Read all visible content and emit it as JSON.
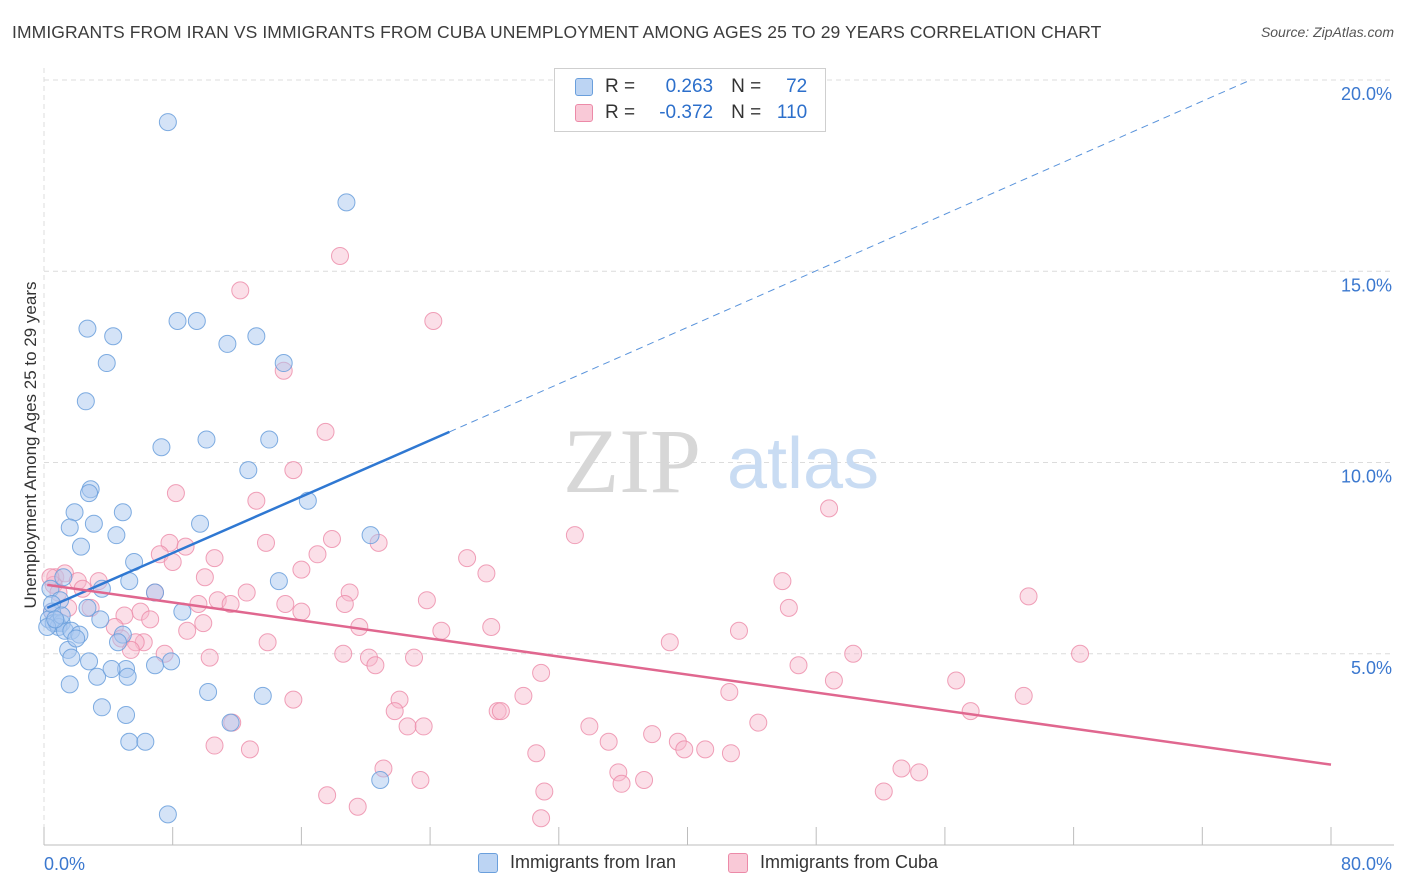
{
  "header": {
    "title": "IMMIGRANTS FROM IRAN VS IMMIGRANTS FROM CUBA UNEMPLOYMENT AMONG AGES 25 TO 29 YEARS CORRELATION CHART",
    "source": "Source: ZipAtlas.com"
  },
  "watermark": {
    "zip": "ZIP",
    "atlas": "atlas"
  },
  "legend": {
    "r_label": "R =",
    "n_label": "N =",
    "iran": {
      "r": "0.263",
      "n": "72"
    },
    "cuba": {
      "r": "-0.372",
      "n": "110"
    }
  },
  "colors": {
    "iran_fill": "#a9c8f0",
    "iran_stroke": "#6a9fdc",
    "iran_line": "#2f78d2",
    "cuba_fill": "#f6b8cb",
    "cuba_stroke": "#ec8aa8",
    "cuba_line": "#e0678f",
    "tick_label": "#3b78cf",
    "grid": "#dcdcdc"
  },
  "chart_data": {
    "type": "scatter",
    "title": "IMMIGRANTS FROM IRAN VS IMMIGRANTS FROM CUBA UNEMPLOYMENT AMONG AGES 25 TO 29 YEARS CORRELATION CHART",
    "xlabel": "",
    "ylabel": "Unemployment Among Ages 25 to 29 years",
    "xlim": [
      0,
      80
    ],
    "ylim": [
      0,
      20
    ],
    "x_tick_labels": [
      "0.0%",
      "80.0%"
    ],
    "y_ticks": [
      5,
      10,
      15,
      20
    ],
    "y_tick_labels": [
      "5.0%",
      "10.0%",
      "15.0%",
      "20.0%"
    ],
    "grid": true,
    "legend_position": "bottom",
    "series": [
      {
        "name": "Immigrants from Iran",
        "r": 0.263,
        "n": 72,
        "trend": {
          "x": [
            0.2,
            25.2
          ],
          "y": [
            6.2,
            10.8
          ],
          "dashed_extension_to": [
            75,
            20.0
          ]
        },
        "points": [
          [
            7.7,
            18.9
          ],
          [
            18.8,
            16.8
          ],
          [
            2.7,
            13.5
          ],
          [
            4.3,
            13.3
          ],
          [
            8.3,
            13.7
          ],
          [
            9.5,
            13.7
          ],
          [
            11.4,
            13.1
          ],
          [
            13.2,
            13.3
          ],
          [
            14.9,
            12.6
          ],
          [
            3.9,
            12.6
          ],
          [
            2.6,
            11.6
          ],
          [
            7.3,
            10.4
          ],
          [
            10.1,
            10.6
          ],
          [
            14.0,
            10.6
          ],
          [
            12.7,
            9.8
          ],
          [
            2.9,
            9.3
          ],
          [
            2.8,
            9.2
          ],
          [
            16.4,
            9.0
          ],
          [
            1.9,
            8.7
          ],
          [
            4.9,
            8.7
          ],
          [
            1.6,
            8.3
          ],
          [
            3.1,
            8.4
          ],
          [
            9.7,
            8.4
          ],
          [
            20.3,
            8.1
          ],
          [
            4.5,
            8.1
          ],
          [
            2.3,
            7.8
          ],
          [
            5.6,
            7.4
          ],
          [
            1.2,
            7.0
          ],
          [
            5.3,
            6.9
          ],
          [
            14.6,
            6.9
          ],
          [
            3.6,
            6.7
          ],
          [
            6.9,
            6.6
          ],
          [
            0.4,
            6.7
          ],
          [
            1.0,
            6.4
          ],
          [
            0.5,
            6.1
          ],
          [
            2.7,
            6.2
          ],
          [
            8.6,
            6.1
          ],
          [
            0.3,
            5.9
          ],
          [
            0.6,
            5.8
          ],
          [
            0.8,
            5.8
          ],
          [
            1.1,
            5.8
          ],
          [
            0.9,
            5.7
          ],
          [
            0.2,
            5.7
          ],
          [
            1.3,
            5.6
          ],
          [
            1.7,
            5.6
          ],
          [
            3.5,
            5.9
          ],
          [
            2.2,
            5.5
          ],
          [
            4.9,
            5.5
          ],
          [
            1.5,
            5.1
          ],
          [
            4.6,
            5.3
          ],
          [
            1.7,
            4.9
          ],
          [
            2.8,
            4.8
          ],
          [
            5.1,
            4.6
          ],
          [
            6.9,
            4.7
          ],
          [
            7.9,
            4.8
          ],
          [
            3.3,
            4.4
          ],
          [
            5.2,
            4.4
          ],
          [
            1.6,
            4.2
          ],
          [
            10.2,
            4.0
          ],
          [
            3.6,
            3.6
          ],
          [
            5.1,
            3.4
          ],
          [
            13.6,
            3.9
          ],
          [
            11.6,
            3.2
          ],
          [
            5.3,
            2.7
          ],
          [
            6.3,
            2.7
          ],
          [
            20.9,
            1.7
          ],
          [
            7.7,
            0.8
          ],
          [
            0.5,
            6.3
          ],
          [
            1.1,
            6.0
          ],
          [
            0.7,
            5.9
          ],
          [
            2.0,
            5.4
          ],
          [
            4.2,
            4.6
          ]
        ]
      },
      {
        "name": "Immigrants from Cuba",
        "r": -0.372,
        "n": 110,
        "trend": {
          "x": [
            0.2,
            80.0
          ],
          "y": [
            6.8,
            2.1
          ]
        },
        "points": [
          [
            18.4,
            15.4
          ],
          [
            12.2,
            14.5
          ],
          [
            24.2,
            13.7
          ],
          [
            14.9,
            12.4
          ],
          [
            17.5,
            10.8
          ],
          [
            15.5,
            9.8
          ],
          [
            8.2,
            9.2
          ],
          [
            13.2,
            9.0
          ],
          [
            48.8,
            8.8
          ],
          [
            33.0,
            8.1
          ],
          [
            17.9,
            8.0
          ],
          [
            7.8,
            7.9
          ],
          [
            8.8,
            7.8
          ],
          [
            13.8,
            7.9
          ],
          [
            20.8,
            7.9
          ],
          [
            7.2,
            7.6
          ],
          [
            17.0,
            7.6
          ],
          [
            10.6,
            7.5
          ],
          [
            26.3,
            7.5
          ],
          [
            16.0,
            7.2
          ],
          [
            8.0,
            7.4
          ],
          [
            27.5,
            7.1
          ],
          [
            10.0,
            7.0
          ],
          [
            0.7,
            7.0
          ],
          [
            1.3,
            7.1
          ],
          [
            2.1,
            6.9
          ],
          [
            3.4,
            6.9
          ],
          [
            0.6,
            6.8
          ],
          [
            0.9,
            6.6
          ],
          [
            2.4,
            6.7
          ],
          [
            12.6,
            6.6
          ],
          [
            19.0,
            6.6
          ],
          [
            6.9,
            6.6
          ],
          [
            45.9,
            6.9
          ],
          [
            23.8,
            6.4
          ],
          [
            61.2,
            6.5
          ],
          [
            15.0,
            6.3
          ],
          [
            10.8,
            6.4
          ],
          [
            6.0,
            6.1
          ],
          [
            9.6,
            6.3
          ],
          [
            11.6,
            6.3
          ],
          [
            18.7,
            6.3
          ],
          [
            2.9,
            6.2
          ],
          [
            16.0,
            6.1
          ],
          [
            0.5,
            6.1
          ],
          [
            1.5,
            6.2
          ],
          [
            5.0,
            6.0
          ],
          [
            6.6,
            5.9
          ],
          [
            9.9,
            5.8
          ],
          [
            4.4,
            5.7
          ],
          [
            19.6,
            5.7
          ],
          [
            8.9,
            5.6
          ],
          [
            24.7,
            5.6
          ],
          [
            27.8,
            5.7
          ],
          [
            46.3,
            6.2
          ],
          [
            4.8,
            5.4
          ],
          [
            6.2,
            5.3
          ],
          [
            13.9,
            5.3
          ],
          [
            5.7,
            5.3
          ],
          [
            38.9,
            5.3
          ],
          [
            43.2,
            5.6
          ],
          [
            5.4,
            5.1
          ],
          [
            7.5,
            5.0
          ],
          [
            10.3,
            4.9
          ],
          [
            18.6,
            5.0
          ],
          [
            20.2,
            4.9
          ],
          [
            23.0,
            4.9
          ],
          [
            46.9,
            4.7
          ],
          [
            20.6,
            4.7
          ],
          [
            30.9,
            4.5
          ],
          [
            50.3,
            5.0
          ],
          [
            56.7,
            4.3
          ],
          [
            49.1,
            4.3
          ],
          [
            64.4,
            5.0
          ],
          [
            29.8,
            3.9
          ],
          [
            42.6,
            4.0
          ],
          [
            22.1,
            3.8
          ],
          [
            15.5,
            3.8
          ],
          [
            60.9,
            3.9
          ],
          [
            21.8,
            3.5
          ],
          [
            28.2,
            3.5
          ],
          [
            28.4,
            3.5
          ],
          [
            57.6,
            3.5
          ],
          [
            11.7,
            3.2
          ],
          [
            22.6,
            3.1
          ],
          [
            23.6,
            3.1
          ],
          [
            33.9,
            3.1
          ],
          [
            44.4,
            3.2
          ],
          [
            37.8,
            2.9
          ],
          [
            35.1,
            2.7
          ],
          [
            39.4,
            2.7
          ],
          [
            10.6,
            2.6
          ],
          [
            12.8,
            2.5
          ],
          [
            39.8,
            2.5
          ],
          [
            41.1,
            2.5
          ],
          [
            42.7,
            2.4
          ],
          [
            30.6,
            2.4
          ],
          [
            21.1,
            2.0
          ],
          [
            35.7,
            1.9
          ],
          [
            37.3,
            1.7
          ],
          [
            53.3,
            2.0
          ],
          [
            54.4,
            1.9
          ],
          [
            23.4,
            1.7
          ],
          [
            35.9,
            1.6
          ],
          [
            17.6,
            1.3
          ],
          [
            52.2,
            1.4
          ],
          [
            31.1,
            1.4
          ],
          [
            19.5,
            1.0
          ],
          [
            30.9,
            0.7
          ],
          [
            0.4,
            7.0
          ]
        ]
      }
    ]
  },
  "bottom_legend": {
    "iran_label": "Immigrants from Iran",
    "cuba_label": "Immigrants from Cuba"
  }
}
